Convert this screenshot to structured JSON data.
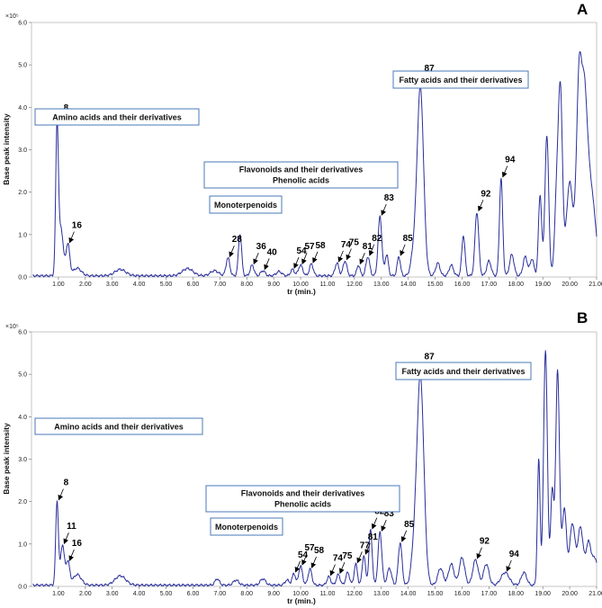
{
  "chart_data": [
    {
      "type": "line",
      "panel_label": "A",
      "ylabel": "Base peak intensity",
      "xlabel": "tr (min.)",
      "y_unit_label": "×10⁵",
      "xlim": [
        0.0,
        21.0
      ],
      "ylim": [
        0.0,
        6.0
      ],
      "x_ticks": [
        1,
        2,
        3,
        4,
        5,
        6,
        7,
        8,
        9,
        10,
        11,
        12,
        13,
        14,
        15,
        16,
        17,
        18,
        19,
        20,
        21
      ],
      "x_tick_labels": [
        "1.00",
        "2.00",
        "3.00",
        "4.00",
        "5.00",
        "6.00",
        "7.00",
        "8.00",
        "9.00",
        "10.00",
        "11.00",
        "12.00",
        "13.00",
        "14.00",
        "15.00",
        "16.00",
        "17.00",
        "18.00",
        "19.00",
        "20.00",
        "21.00"
      ],
      "y_ticks": [
        0,
        1,
        2,
        3,
        4,
        5,
        6
      ],
      "y_tick_labels": [
        "0.0",
        "1.0",
        "2.0",
        "3.0",
        "4.0",
        "5.0",
        "6.0"
      ],
      "grid": false,
      "baseline": 0.03,
      "peaks": [
        [
          0.95,
          3.52,
          0.05
        ],
        [
          1.1,
          1.1,
          0.08
        ],
        [
          1.35,
          0.75,
          0.07
        ],
        [
          1.7,
          0.18,
          0.15
        ],
        [
          3.3,
          0.15,
          0.2
        ],
        [
          5.8,
          0.17,
          0.2
        ],
        [
          6.8,
          0.12,
          0.15
        ],
        [
          7.3,
          0.42,
          0.07
        ],
        [
          7.75,
          0.98,
          0.06
        ],
        [
          8.2,
          0.25,
          0.07
        ],
        [
          8.6,
          0.12,
          0.08
        ],
        [
          9.2,
          0.1,
          0.1
        ],
        [
          9.7,
          0.15,
          0.07
        ],
        [
          10.0,
          0.25,
          0.08
        ],
        [
          10.4,
          0.28,
          0.07
        ],
        [
          11.35,
          0.3,
          0.07
        ],
        [
          11.65,
          0.35,
          0.07
        ],
        [
          12.15,
          0.25,
          0.06
        ],
        [
          12.5,
          0.45,
          0.07
        ],
        [
          12.95,
          1.4,
          0.07
        ],
        [
          13.2,
          0.5,
          0.06
        ],
        [
          13.65,
          0.45,
          0.06
        ],
        [
          14.45,
          4.45,
          0.12
        ],
        [
          14.2,
          0.5,
          0.1
        ],
        [
          15.1,
          0.3,
          0.08
        ],
        [
          15.6,
          0.25,
          0.08
        ],
        [
          16.05,
          0.95,
          0.06
        ],
        [
          16.55,
          1.5,
          0.07
        ],
        [
          17.0,
          0.35,
          0.08
        ],
        [
          17.45,
          2.3,
          0.06
        ],
        [
          17.85,
          0.5,
          0.08
        ],
        [
          18.35,
          0.45,
          0.08
        ],
        [
          18.6,
          0.4,
          0.07
        ],
        [
          18.9,
          1.9,
          0.06
        ],
        [
          19.15,
          3.3,
          0.07
        ],
        [
          19.5,
          1.5,
          0.07
        ],
        [
          19.65,
          4.4,
          0.08
        ],
        [
          20.0,
          2.2,
          0.12
        ],
        [
          20.35,
          4.6,
          0.1
        ],
        [
          20.55,
          3.6,
          0.1
        ],
        [
          20.75,
          2.0,
          0.12
        ],
        [
          20.95,
          0.8,
          0.1
        ]
      ],
      "peak_labels": [
        {
          "text": "8",
          "x": 0.95,
          "y": 3.52
        },
        {
          "text": "16",
          "x": 1.35,
          "y": 0.75
        },
        {
          "text": "28",
          "x": 7.3,
          "y": 0.42
        },
        {
          "text": "36",
          "x": 8.2,
          "y": 0.25
        },
        {
          "text": "40",
          "x": 8.6,
          "y": 0.12
        },
        {
          "text": "54",
          "x": 9.7,
          "y": 0.15
        },
        {
          "text": "57",
          "x": 10.0,
          "y": 0.25
        },
        {
          "text": "58",
          "x": 10.4,
          "y": 0.28
        },
        {
          "text": "74",
          "x": 11.35,
          "y": 0.3
        },
        {
          "text": "75",
          "x": 11.65,
          "y": 0.35
        },
        {
          "text": "81",
          "x": 12.15,
          "y": 0.25
        },
        {
          "text": "82",
          "x": 12.5,
          "y": 0.45
        },
        {
          "text": "83",
          "x": 12.95,
          "y": 1.4
        },
        {
          "text": "85",
          "x": 13.65,
          "y": 0.45
        },
        {
          "text": "87",
          "x": 14.45,
          "y": 4.45
        },
        {
          "text": "92",
          "x": 16.55,
          "y": 1.5
        },
        {
          "text": "94",
          "x": 17.45,
          "y": 2.3
        }
      ],
      "annotations": [
        {
          "text": "Amino acids and their derivatives"
        },
        {
          "text": "Flavonoids and their derivatives",
          "text2": "Phenolic acids"
        },
        {
          "text": "Monoterpenoids"
        },
        {
          "text": "Fatty acids and their derivatives"
        }
      ]
    },
    {
      "type": "line",
      "panel_label": "B",
      "ylabel": "Base peak intensity",
      "xlabel": "tr (min.)",
      "y_unit_label": "×10⁵",
      "xlim": [
        0.0,
        21.0
      ],
      "ylim": [
        0.0,
        6.0
      ],
      "x_ticks": [
        1,
        2,
        3,
        4,
        5,
        6,
        7,
        8,
        9,
        10,
        11,
        12,
        13,
        14,
        15,
        16,
        17,
        18,
        19,
        20,
        21
      ],
      "x_tick_labels": [
        "1.00",
        "2.00",
        "3.00",
        "4.00",
        "5.00",
        "6.00",
        "7.00",
        "8.00",
        "9.00",
        "10.00",
        "11.00",
        "12.00",
        "13.00",
        "14.00",
        "15.00",
        "16.00",
        "17.00",
        "18.00",
        "19.00",
        "20.00",
        "21.00"
      ],
      "y_ticks": [
        0,
        1,
        2,
        3,
        4,
        5,
        6
      ],
      "y_tick_labels": [
        "0.0",
        "1.0",
        "2.0",
        "3.0",
        "4.0",
        "5.0",
        "6.0"
      ],
      "grid": false,
      "baseline": 0.03,
      "peaks": [
        [
          0.95,
          1.98,
          0.05
        ],
        [
          1.15,
          0.95,
          0.07
        ],
        [
          1.35,
          0.55,
          0.07
        ],
        [
          1.7,
          0.25,
          0.15
        ],
        [
          3.3,
          0.22,
          0.2
        ],
        [
          6.9,
          0.15,
          0.08
        ],
        [
          7.6,
          0.12,
          0.1
        ],
        [
          8.6,
          0.15,
          0.1
        ],
        [
          9.5,
          0.12,
          0.08
        ],
        [
          9.75,
          0.28,
          0.06
        ],
        [
          10.0,
          0.45,
          0.07
        ],
        [
          10.35,
          0.38,
          0.07
        ],
        [
          11.05,
          0.2,
          0.07
        ],
        [
          11.4,
          0.25,
          0.07
        ],
        [
          11.75,
          0.3,
          0.07
        ],
        [
          12.05,
          0.5,
          0.06
        ],
        [
          12.35,
          0.7,
          0.06
        ],
        [
          12.6,
          1.3,
          0.06
        ],
        [
          12.95,
          1.25,
          0.07
        ],
        [
          13.7,
          1.0,
          0.07
        ],
        [
          13.3,
          0.4,
          0.08
        ],
        [
          14.45,
          4.95,
          0.13
        ],
        [
          14.2,
          0.6,
          0.1
        ],
        [
          15.2,
          0.4,
          0.1
        ],
        [
          15.6,
          0.5,
          0.1
        ],
        [
          16.0,
          0.65,
          0.1
        ],
        [
          16.5,
          0.6,
          0.1
        ],
        [
          16.9,
          0.5,
          0.1
        ],
        [
          17.6,
          0.3,
          0.15
        ],
        [
          18.3,
          0.3,
          0.1
        ],
        [
          18.85,
          2.95,
          0.05
        ],
        [
          19.1,
          5.55,
          0.07
        ],
        [
          19.35,
          2.2,
          0.06
        ],
        [
          19.55,
          5.05,
          0.07
        ],
        [
          19.8,
          1.8,
          0.08
        ],
        [
          20.1,
          1.45,
          0.1
        ],
        [
          20.4,
          1.35,
          0.1
        ],
        [
          20.7,
          1.0,
          0.1
        ],
        [
          20.95,
          0.6,
          0.1
        ]
      ],
      "peak_labels": [
        {
          "text": "8",
          "x": 0.95,
          "y": 1.98
        },
        {
          "text": "11",
          "x": 1.15,
          "y": 0.95
        },
        {
          "text": "16",
          "x": 1.35,
          "y": 0.55
        },
        {
          "text": "54",
          "x": 9.75,
          "y": 0.28
        },
        {
          "text": "57",
          "x": 10.0,
          "y": 0.45
        },
        {
          "text": "58",
          "x": 10.35,
          "y": 0.38
        },
        {
          "text": "74",
          "x": 11.05,
          "y": 0.2
        },
        {
          "text": "75",
          "x": 11.4,
          "y": 0.25
        },
        {
          "text": "77",
          "x": 12.05,
          "y": 0.5
        },
        {
          "text": "81",
          "x": 12.35,
          "y": 0.7
        },
        {
          "text": "82",
          "x": 12.6,
          "y": 1.3
        },
        {
          "text": "83",
          "x": 12.95,
          "y": 1.25
        },
        {
          "text": "85",
          "x": 13.7,
          "y": 1.0
        },
        {
          "text": "87",
          "x": 14.45,
          "y": 4.95
        },
        {
          "text": "92",
          "x": 16.5,
          "y": 0.6
        },
        {
          "text": "94",
          "x": 17.6,
          "y": 0.3
        }
      ],
      "annotations": [
        {
          "text": "Amino acids and their derivatives"
        },
        {
          "text": "Flavonoids and their derivatives",
          "text2": "Phenolic acids"
        },
        {
          "text": "Monoterpenoids"
        },
        {
          "text": "Fatty acids and their derivatives"
        }
      ]
    }
  ]
}
